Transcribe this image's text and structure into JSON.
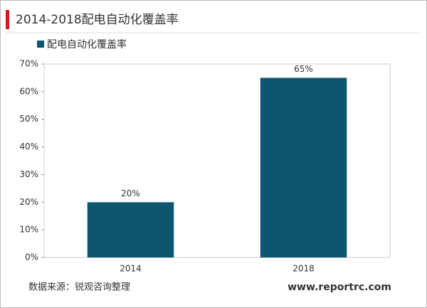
{
  "chart_data": {
    "type": "bar",
    "title": "2014-2018配电自动化覆盖率",
    "categories": [
      "2014",
      "2018"
    ],
    "series": [
      {
        "name": "配电自动化覆盖率",
        "color": "#0d5670",
        "values": [
          20,
          65
        ],
        "value_labels": [
          "20%",
          "65%"
        ]
      }
    ],
    "ylim": [
      0,
      70
    ],
    "yticks": [
      {
        "value": 0,
        "label": "0%"
      },
      {
        "value": 10,
        "label": "10%"
      },
      {
        "value": 20,
        "label": "20%"
      },
      {
        "value": 30,
        "label": "30%"
      },
      {
        "value": 40,
        "label": "40%"
      },
      {
        "value": 50,
        "label": "50%"
      },
      {
        "value": 60,
        "label": "60%"
      },
      {
        "value": 70,
        "label": "70%"
      }
    ],
    "source": "数据来源：锐观咨询整理",
    "website": "www.reportrc.com"
  }
}
